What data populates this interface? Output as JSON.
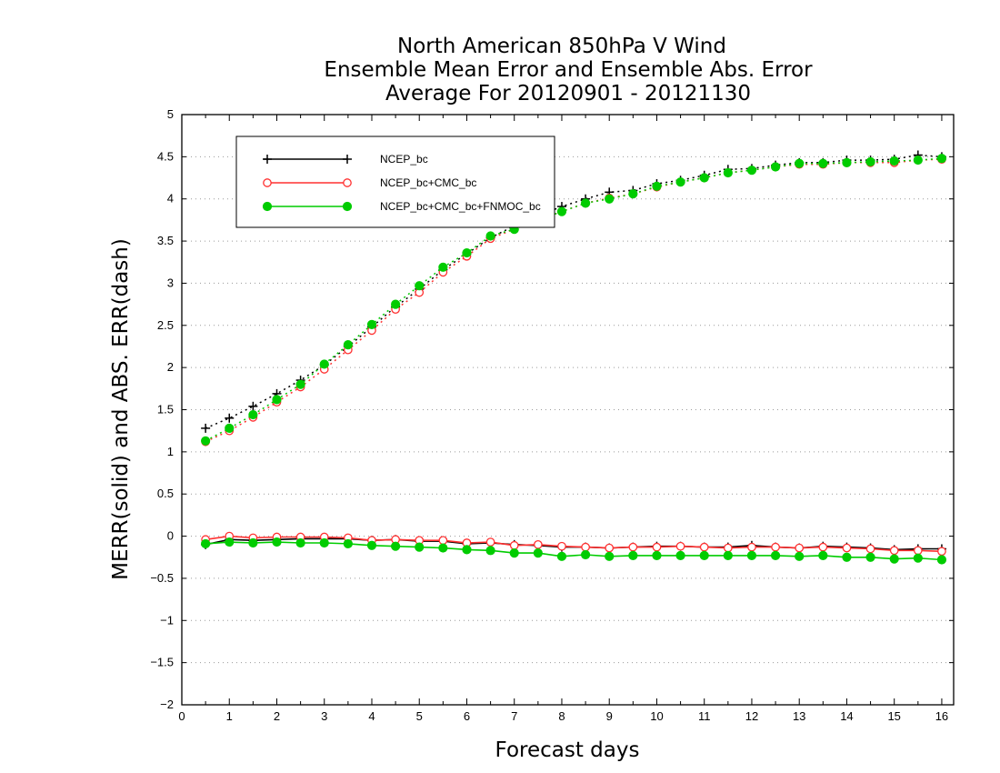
{
  "chart_data": {
    "type": "line",
    "title": [
      "North American 850hPa V Wind",
      "Ensemble Mean Error and Ensemble Abs. Error",
      "Average For 20120901 - 20121130"
    ],
    "xlabel": "Forecast days",
    "ylabel": "MERR(solid) and ABS. ERR(dash)",
    "xlim": [
      0,
      16.25
    ],
    "ylim": [
      -2,
      5
    ],
    "xticks": [
      0,
      1,
      2,
      3,
      4,
      5,
      6,
      7,
      8,
      9,
      10,
      11,
      12,
      13,
      14,
      15,
      16
    ],
    "yticks": [
      -2,
      -1.5,
      -1,
      -0.5,
      0,
      0.5,
      1,
      1.5,
      2,
      2.5,
      3,
      3.5,
      4,
      4.5,
      5
    ],
    "ytick_labels": [
      "−2",
      "−1.5",
      "−1",
      "−0.5",
      "0",
      "0.5",
      "1",
      "1.5",
      "2",
      "2.5",
      "3",
      "3.5",
      "4",
      "4.5",
      "5"
    ],
    "grid": "horizontal dotted",
    "legend_position": "top-left",
    "x": [
      0.5,
      1,
      1.5,
      2,
      2.5,
      3,
      3.5,
      4,
      4.5,
      5,
      5.5,
      6,
      6.5,
      7,
      7.5,
      8,
      8.5,
      9,
      9.5,
      10,
      10.5,
      11,
      11.5,
      12,
      12.5,
      13,
      13.5,
      14,
      14.5,
      15,
      15.5,
      16
    ],
    "series": [
      {
        "name": "NCEP_bc",
        "color": "#000000",
        "marker": "plus",
        "merr": [
          -0.1,
          -0.04,
          -0.05,
          -0.04,
          -0.03,
          -0.03,
          -0.03,
          -0.05,
          -0.04,
          -0.06,
          -0.06,
          -0.09,
          -0.08,
          -0.1,
          -0.11,
          -0.13,
          -0.13,
          -0.14,
          -0.13,
          -0.12,
          -0.12,
          -0.13,
          -0.13,
          -0.11,
          -0.13,
          -0.14,
          -0.12,
          -0.13,
          -0.14,
          -0.16,
          -0.15,
          -0.15
        ],
        "abs_err": [
          1.28,
          1.4,
          1.54,
          1.69,
          1.85,
          2.03,
          2.25,
          2.48,
          2.72,
          2.93,
          3.16,
          3.35,
          3.54,
          3.68,
          3.8,
          3.91,
          4.0,
          4.08,
          4.1,
          4.18,
          4.22,
          4.28,
          4.35,
          4.36,
          4.4,
          4.43,
          4.43,
          4.46,
          4.46,
          4.47,
          4.52,
          4.5
        ]
      },
      {
        "name": "NCEP_bc+CMC_bc",
        "color": "#ff3030",
        "marker": "open-circle",
        "merr": [
          -0.04,
          0.0,
          -0.02,
          -0.01,
          -0.01,
          -0.01,
          -0.02,
          -0.05,
          -0.04,
          -0.05,
          -0.05,
          -0.08,
          -0.07,
          -0.11,
          -0.1,
          -0.12,
          -0.13,
          -0.14,
          -0.13,
          -0.13,
          -0.12,
          -0.13,
          -0.14,
          -0.13,
          -0.13,
          -0.14,
          -0.13,
          -0.14,
          -0.15,
          -0.17,
          -0.17,
          -0.18
        ],
        "abs_err": [
          1.12,
          1.25,
          1.41,
          1.59,
          1.77,
          1.98,
          2.21,
          2.44,
          2.69,
          2.89,
          3.13,
          3.32,
          3.53,
          3.64,
          3.75,
          3.85,
          3.95,
          4.01,
          4.06,
          4.14,
          4.2,
          4.25,
          4.31,
          4.34,
          4.38,
          4.41,
          4.41,
          4.43,
          4.43,
          4.43,
          4.46,
          4.47
        ]
      },
      {
        "name": "NCEP_bc+CMC_bc+FNMOC_bc",
        "color": "#00cc00",
        "marker": "filled-circle",
        "merr": [
          -0.09,
          -0.07,
          -0.08,
          -0.07,
          -0.08,
          -0.08,
          -0.09,
          -0.11,
          -0.12,
          -0.13,
          -0.14,
          -0.16,
          -0.17,
          -0.2,
          -0.2,
          -0.24,
          -0.22,
          -0.24,
          -0.23,
          -0.23,
          -0.23,
          -0.23,
          -0.23,
          -0.23,
          -0.23,
          -0.24,
          -0.23,
          -0.25,
          -0.25,
          -0.27,
          -0.26,
          -0.28
        ],
        "abs_err": [
          1.13,
          1.28,
          1.44,
          1.62,
          1.8,
          2.04,
          2.27,
          2.51,
          2.75,
          2.97,
          3.19,
          3.36,
          3.56,
          3.64,
          3.75,
          3.85,
          3.95,
          4.0,
          4.06,
          4.15,
          4.2,
          4.25,
          4.31,
          4.34,
          4.38,
          4.42,
          4.42,
          4.43,
          4.44,
          4.45,
          4.46,
          4.48
        ]
      }
    ]
  }
}
